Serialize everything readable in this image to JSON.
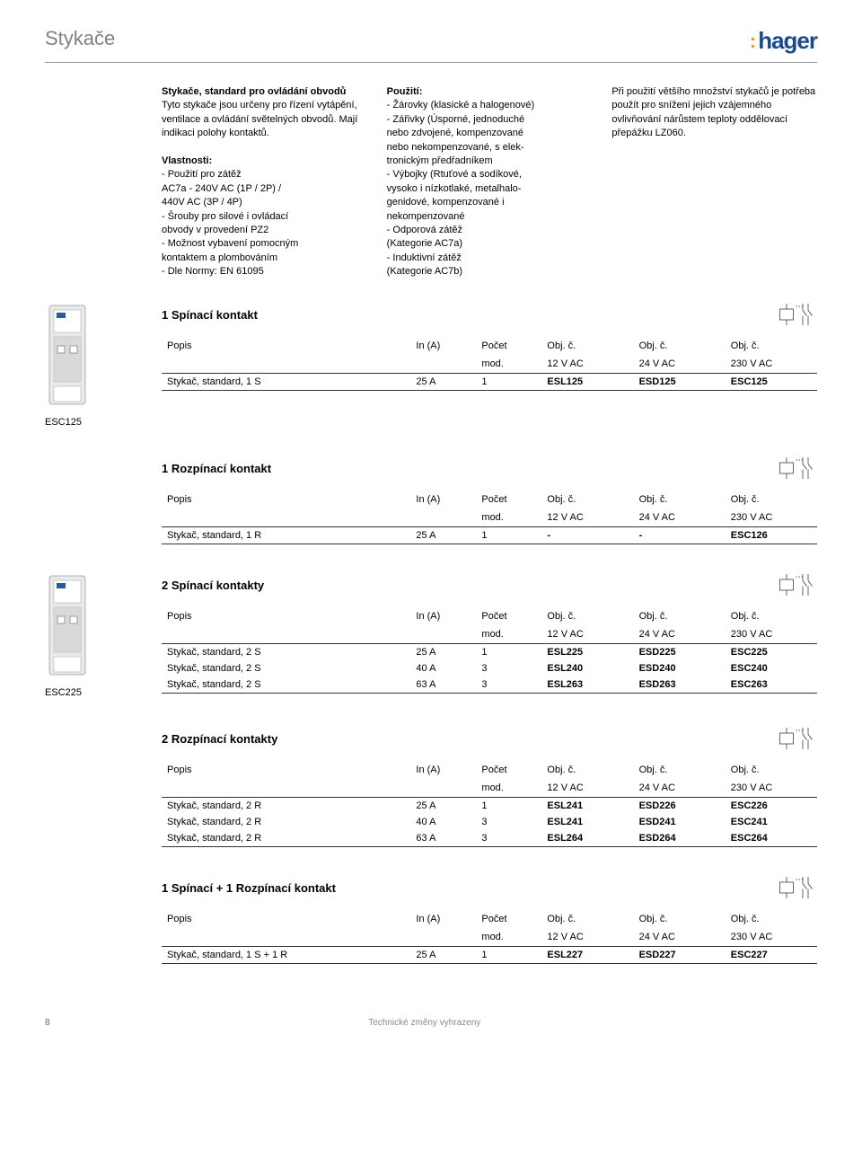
{
  "header": {
    "title": "Stykače",
    "logo_text": "hager"
  },
  "intro": {
    "col1": {
      "title": "Stykače, standard pro ovládání obvodů",
      "body": "Tyto stykače jsou určeny pro řízení vytápění, ventilace a ovládání světelných obvodů. Mají indikaci polohy kontaktů.",
      "sub_title": "Vlastnosti:",
      "items": "- Použití pro zátěž\n  AC7a - 240V AC (1P / 2P) /\n  440V AC (3P / 4P)\n- Šrouby pro silové i ovládací\n  obvody v provedení PZ2\n- Možnost vybavení pomocným\n  kontaktem a plombováním\n- Dle Normy: EN 61095"
    },
    "col2": {
      "title": "Použití:",
      "items": "- Žárovky (klasické a halogenové)\n- Zářivky (Úsporné, jednoduché\n  nebo zdvojené, kompenzované\n  nebo nekompenzované, s elek-\n  tronickým předřadníkem\n- Výbojky (Rtuťové a sodíkové,\n  vysoko i nízkotlaké, metalhalo-\n  genidové, kompenzované i\n  nekompenzované\n- Odporová zátěž\n  (Kategorie AC7a)\n- Induktivní zátěž\n  (Kategorie AC7b)"
    },
    "col3": {
      "body": "Při použití většího množství stykačů je potřeba použít pro snížení jejich vzájemného ovlivňování nárůstem teploty oddělovací přepážku LZ060."
    }
  },
  "table_headers": {
    "popis": "Popis",
    "in_a": "In (A)",
    "pocet": "Počet",
    "mod": "mod.",
    "obj": "Obj. č.",
    "v12": "12 V AC",
    "v24": "24 V AC",
    "v230": "230 V AC"
  },
  "sections": [
    {
      "title": "1 Spínací kontakt",
      "product_code": "ESC125",
      "show_image": true,
      "rows": [
        {
          "desc": "Stykač, standard, 1 S",
          "in": "25 A",
          "mod": "1",
          "c12": "ESL125",
          "c24": "ESD125",
          "c230": "ESC125"
        }
      ]
    },
    {
      "title": "1 Rozpínací kontakt",
      "product_code": "",
      "show_image": false,
      "rows": [
        {
          "desc": "Stykač, standard, 1 R",
          "in": "25 A",
          "mod": "1",
          "c12": "-",
          "c24": "-",
          "c230": "ESC126"
        }
      ]
    },
    {
      "title": "2 Spínací kontakty",
      "product_code": "ESC225",
      "show_image": true,
      "rows": [
        {
          "desc": "Stykač, standard, 2 S",
          "in": "25 A",
          "mod": "1",
          "c12": "ESL225",
          "c24": "ESD225",
          "c230": "ESC225"
        },
        {
          "desc": "Stykač, standard, 2 S",
          "in": "40 A",
          "mod": "3",
          "c12": "ESL240",
          "c24": "ESD240",
          "c230": "ESC240"
        },
        {
          "desc": "Stykač, standard, 2 S",
          "in": "63 A",
          "mod": "3",
          "c12": "ESL263",
          "c24": "ESD263",
          "c230": "ESC263"
        }
      ]
    },
    {
      "title": "2 Rozpínací kontakty",
      "product_code": "",
      "show_image": false,
      "rows": [
        {
          "desc": "Stykač, standard, 2 R",
          "in": "25 A",
          "mod": "1",
          "c12": "ESL241",
          "c24": "ESD226",
          "c230": "ESC226"
        },
        {
          "desc": "Stykač, standard, 2 R",
          "in": "40 A",
          "mod": "3",
          "c12": "ESL241",
          "c24": "ESD241",
          "c230": "ESC241"
        },
        {
          "desc": "Stykač, standard, 2 R",
          "in": "63 A",
          "mod": "3",
          "c12": "ESL264",
          "c24": "ESD264",
          "c230": "ESC264"
        }
      ]
    },
    {
      "title": "1 Spínací + 1 Rozpínací kontakt",
      "product_code": "",
      "show_image": false,
      "rows": [
        {
          "desc": "Stykač, standard, 1 S + 1 R",
          "in": "25 A",
          "mod": "1",
          "c12": "ESL227",
          "c24": "ESD227",
          "c230": "ESC227"
        }
      ]
    }
  ],
  "footer": {
    "page": "8",
    "text": "Technické změny vyhrazeny"
  },
  "colors": {
    "title_gray": "#7f8285",
    "logo_blue": "#1b4a8a",
    "logo_orange": "#f39b1e",
    "line": "#333333"
  }
}
